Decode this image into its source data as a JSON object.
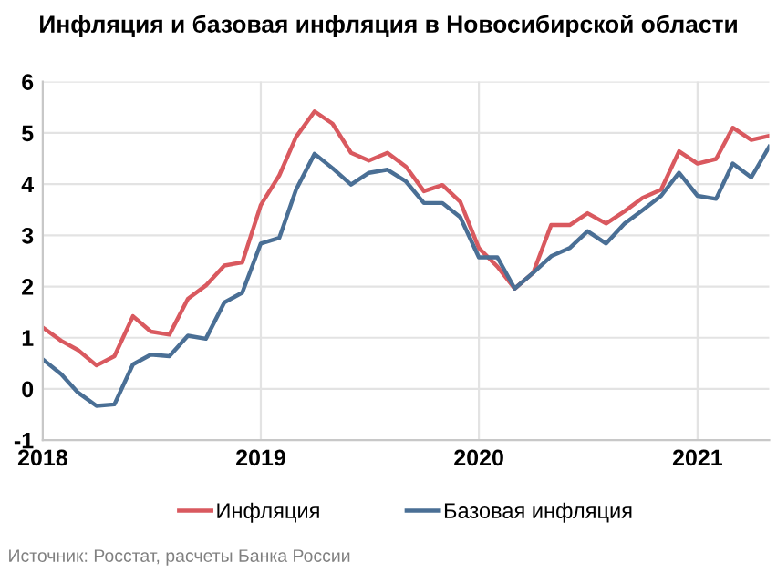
{
  "chart_data": {
    "type": "line",
    "title": "Инфляция и базовая инфляция в Новосибирской области",
    "x": [
      "2018-01",
      "2018-02",
      "2018-03",
      "2018-04",
      "2018-05",
      "2018-06",
      "2018-07",
      "2018-08",
      "2018-09",
      "2018-10",
      "2018-11",
      "2018-12",
      "2019-01",
      "2019-02",
      "2019-03",
      "2019-04",
      "2019-05",
      "2019-06",
      "2019-07",
      "2019-08",
      "2019-09",
      "2019-10",
      "2019-11",
      "2019-12",
      "2020-01",
      "2020-02",
      "2020-03",
      "2020-04",
      "2020-05",
      "2020-06",
      "2020-07",
      "2020-08",
      "2020-09",
      "2020-10",
      "2020-11",
      "2020-12",
      "2021-01",
      "2021-02",
      "2021-03",
      "2021-04",
      "2021-05"
    ],
    "series": [
      {
        "name": "Инфляция",
        "color": "#d9595f",
        "values": [
          1.2,
          0.94,
          0.76,
          0.46,
          0.64,
          1.42,
          1.12,
          1.06,
          1.76,
          2.02,
          2.41,
          2.47,
          3.59,
          4.17,
          4.92,
          5.42,
          5.18,
          4.61,
          4.46,
          4.61,
          4.34,
          3.86,
          3.98,
          3.65,
          2.75,
          2.39,
          1.96,
          2.27,
          3.2,
          3.2,
          3.43,
          3.23,
          3.47,
          3.73,
          3.89,
          4.64,
          4.4,
          4.49,
          5.1,
          4.86,
          4.94
        ]
      },
      {
        "name": "Базовая инфляция",
        "color": "#4a6f95",
        "values": [
          0.58,
          0.29,
          -0.07,
          -0.33,
          -0.3,
          0.48,
          0.67,
          0.64,
          1.04,
          0.98,
          1.69,
          1.88,
          2.84,
          2.95,
          3.89,
          4.59,
          4.31,
          3.99,
          4.22,
          4.28,
          4.05,
          3.63,
          3.63,
          3.35,
          2.57,
          2.57,
          1.96,
          2.27,
          2.59,
          2.75,
          3.08,
          2.84,
          3.23,
          3.49,
          3.77,
          4.22,
          3.77,
          3.71,
          4.4,
          4.13,
          4.73
        ]
      }
    ],
    "xlim": [
      "2018-01",
      "2021-05"
    ],
    "xticks": [
      {
        "value": "2018-01",
        "label": "2018"
      },
      {
        "value": "2019-01",
        "label": "2019"
      },
      {
        "value": "2020-01",
        "label": "2020"
      },
      {
        "value": "2021-01",
        "label": "2021"
      }
    ],
    "ylim": [
      -1,
      6
    ],
    "yticks": [
      -1,
      0,
      1,
      2,
      3,
      4,
      5,
      6
    ],
    "grid": true,
    "legend": "bottom",
    "marker": "none",
    "line_style": "solid",
    "annotations": [
      "Источник: Росстат, расчеты Банка России"
    ]
  }
}
